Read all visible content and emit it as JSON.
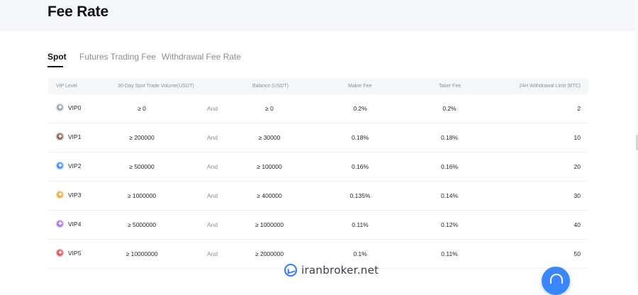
{
  "header": {
    "title": "Fee Rate"
  },
  "tabs": [
    {
      "label": "Spot",
      "active": true
    },
    {
      "label": "Futures Trading Fee",
      "active": false
    },
    {
      "label": "Withdrawal Fee Rate",
      "active": false
    }
  ],
  "table": {
    "columns": {
      "level": "VIP Level",
      "volume": "30-Day Spot Trade Volume(USDT)",
      "balance": "Balance (USDT)",
      "maker": "Maker Fee",
      "taker": "Taker Fee",
      "limit": "24H Withdrawal Limit (BTC)"
    },
    "rows": [
      {
        "level": "VIP0",
        "volume": "≥ 0",
        "joiner": "And",
        "balance": "≥ 0",
        "maker": "0.2%",
        "taker": "0.2%",
        "limit": "2",
        "badge_color": "#9aa0a8",
        "badge_icon": "silver-badge-icon"
      },
      {
        "level": "VIP1",
        "volume": "≥ 200000",
        "joiner": "And",
        "balance": "≥ 30000",
        "maker": "0.18%",
        "taker": "0.18%",
        "limit": "10",
        "badge_color": "#8a5a44",
        "badge_icon": "bronze-badge-icon"
      },
      {
        "level": "VIP2",
        "volume": "≥ 500000",
        "joiner": "And",
        "balance": "≥ 100000",
        "maker": "0.16%",
        "taker": "0.16%",
        "limit": "20",
        "badge_color": "#3a86ff",
        "badge_icon": "blue-badge-icon"
      },
      {
        "level": "VIP3",
        "volume": "≥ 1000000",
        "joiner": "And",
        "balance": "≥ 400000",
        "maker": "0.135%",
        "taker": "0.14%",
        "limit": "30",
        "badge_color": "#f5a623",
        "badge_icon": "gold-badge-icon"
      },
      {
        "level": "VIP4",
        "volume": "≥ 5000000",
        "joiner": "And",
        "balance": "≥ 1000000",
        "maker": "0.11%",
        "taker": "0.12%",
        "limit": "40",
        "badge_color": "#a06ee6",
        "badge_icon": "purple-badge-icon"
      },
      {
        "level": "VIP5",
        "volume": "≥ 10000000",
        "joiner": "And",
        "balance": "≥ 2000000",
        "maker": "0.1%",
        "taker": "0.11%",
        "limit": "50",
        "badge_color": "#e8414d",
        "badge_icon": "red-badge-icon"
      }
    ]
  },
  "watermark": {
    "text": "iranbroker.net"
  },
  "colors": {
    "accent": "#3a86ff",
    "header_band": "#f4f6fa",
    "table_header": "#f6f7f9"
  }
}
